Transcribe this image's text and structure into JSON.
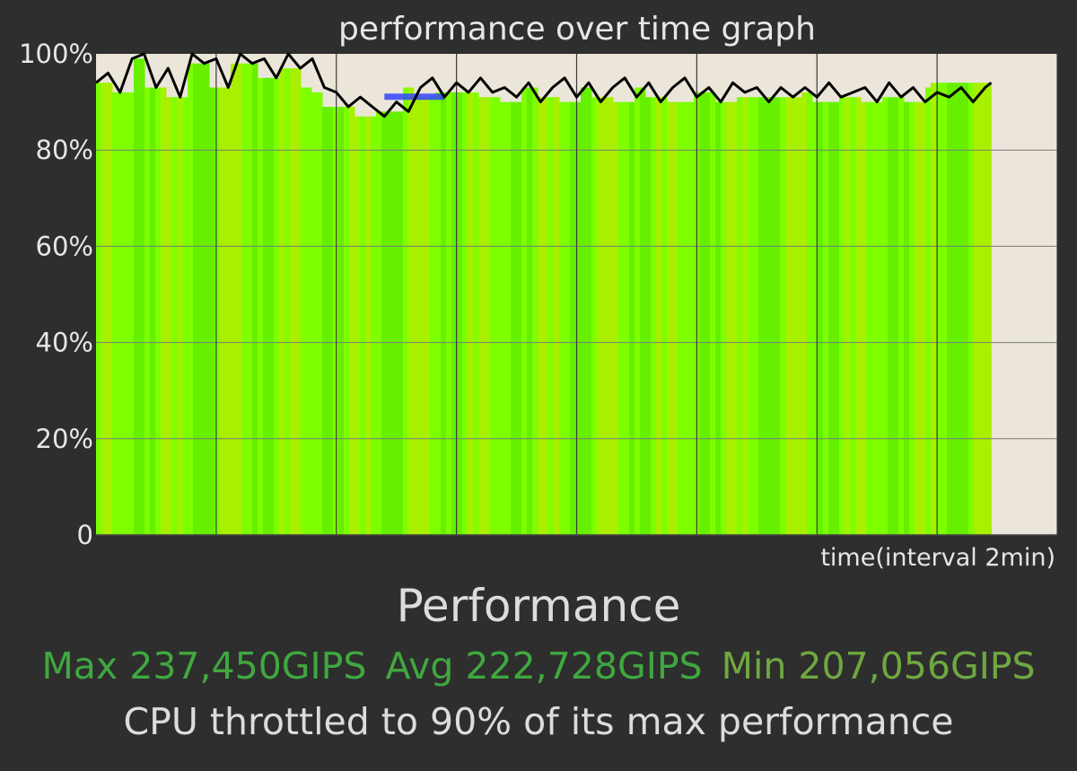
{
  "colors": {
    "background": "#2e2e2e",
    "plot_background": "#ebe6d9",
    "fill_bright": "#7dff00",
    "fill_mid": "#66f000",
    "fill_dim": "#a9f000",
    "line": "#000000",
    "highlight": "#3344ff",
    "grid": "#7a7a7a",
    "stat_green": "#3fa83f",
    "stat_olive": "#6fa840"
  },
  "chart_data": {
    "type": "area",
    "title": "performance over time graph",
    "xlabel": "time(interval 2min)",
    "ylabel": "",
    "ylim": [
      0,
      100
    ],
    "y_ticks": [
      "0",
      "20%",
      "40%",
      "60%",
      "80%",
      "100%"
    ],
    "y_tick_values": [
      0,
      20,
      40,
      60,
      80,
      100
    ],
    "x_range": [
      0,
      16
    ],
    "x_grid_minutes": [
      0,
      2,
      4,
      6,
      8,
      10,
      12,
      14,
      16
    ],
    "grid": true,
    "series": [
      {
        "x": [
          0,
          0.2,
          0.4,
          0.6,
          0.8,
          1.0,
          1.2,
          1.4,
          1.6,
          1.8,
          2.0,
          2.2,
          2.4,
          2.6,
          2.8,
          3.0,
          3.2,
          3.4,
          3.6,
          3.8,
          4.0,
          4.2,
          4.4,
          4.6,
          4.8,
          5.0,
          5.2,
          5.4,
          5.6,
          5.8,
          6.0,
          6.2,
          6.4,
          6.6,
          6.8,
          7.0,
          7.2,
          7.4,
          7.6,
          7.8,
          8.0,
          8.2,
          8.4,
          8.6,
          8.8,
          9.0,
          9.2,
          9.4,
          9.6,
          9.8,
          10.0,
          10.2,
          10.4,
          10.6,
          10.8,
          11.0,
          11.2,
          11.4,
          11.6,
          11.8,
          12.0,
          12.2,
          12.4,
          12.6,
          12.8,
          13.0,
          13.2,
          13.4,
          13.6,
          13.8,
          14.0,
          14.2,
          14.4,
          14.6,
          14.8,
          14.9
        ],
        "values": [
          94,
          96,
          92,
          99,
          100,
          93,
          97,
          91,
          100,
          98,
          99,
          93,
          100,
          98,
          99,
          95,
          100,
          97,
          99,
          93,
          92,
          89,
          91,
          89,
          87,
          90,
          88,
          93,
          95,
          91,
          94,
          92,
          95,
          92,
          93,
          91,
          94,
          90,
          93,
          95,
          91,
          94,
          90,
          93,
          95,
          91,
          94,
          90,
          93,
          95,
          91,
          93,
          90,
          94,
          92,
          93,
          90,
          93,
          91,
          93,
          91,
          94,
          91,
          92,
          93,
          90,
          94,
          91,
          93,
          90,
          92,
          91,
          93,
          90,
          93,
          94
        ]
      }
    ],
    "highlight_band": {
      "x": [
        4.8,
        5.8
      ],
      "value": 91
    }
  },
  "summary": {
    "heading": "Performance",
    "max": "Max 237,450GIPS",
    "avg": "Avg 222,728GIPS",
    "min": "Min 207,056GIPS",
    "note": "CPU throttled to 90% of its max performance"
  }
}
